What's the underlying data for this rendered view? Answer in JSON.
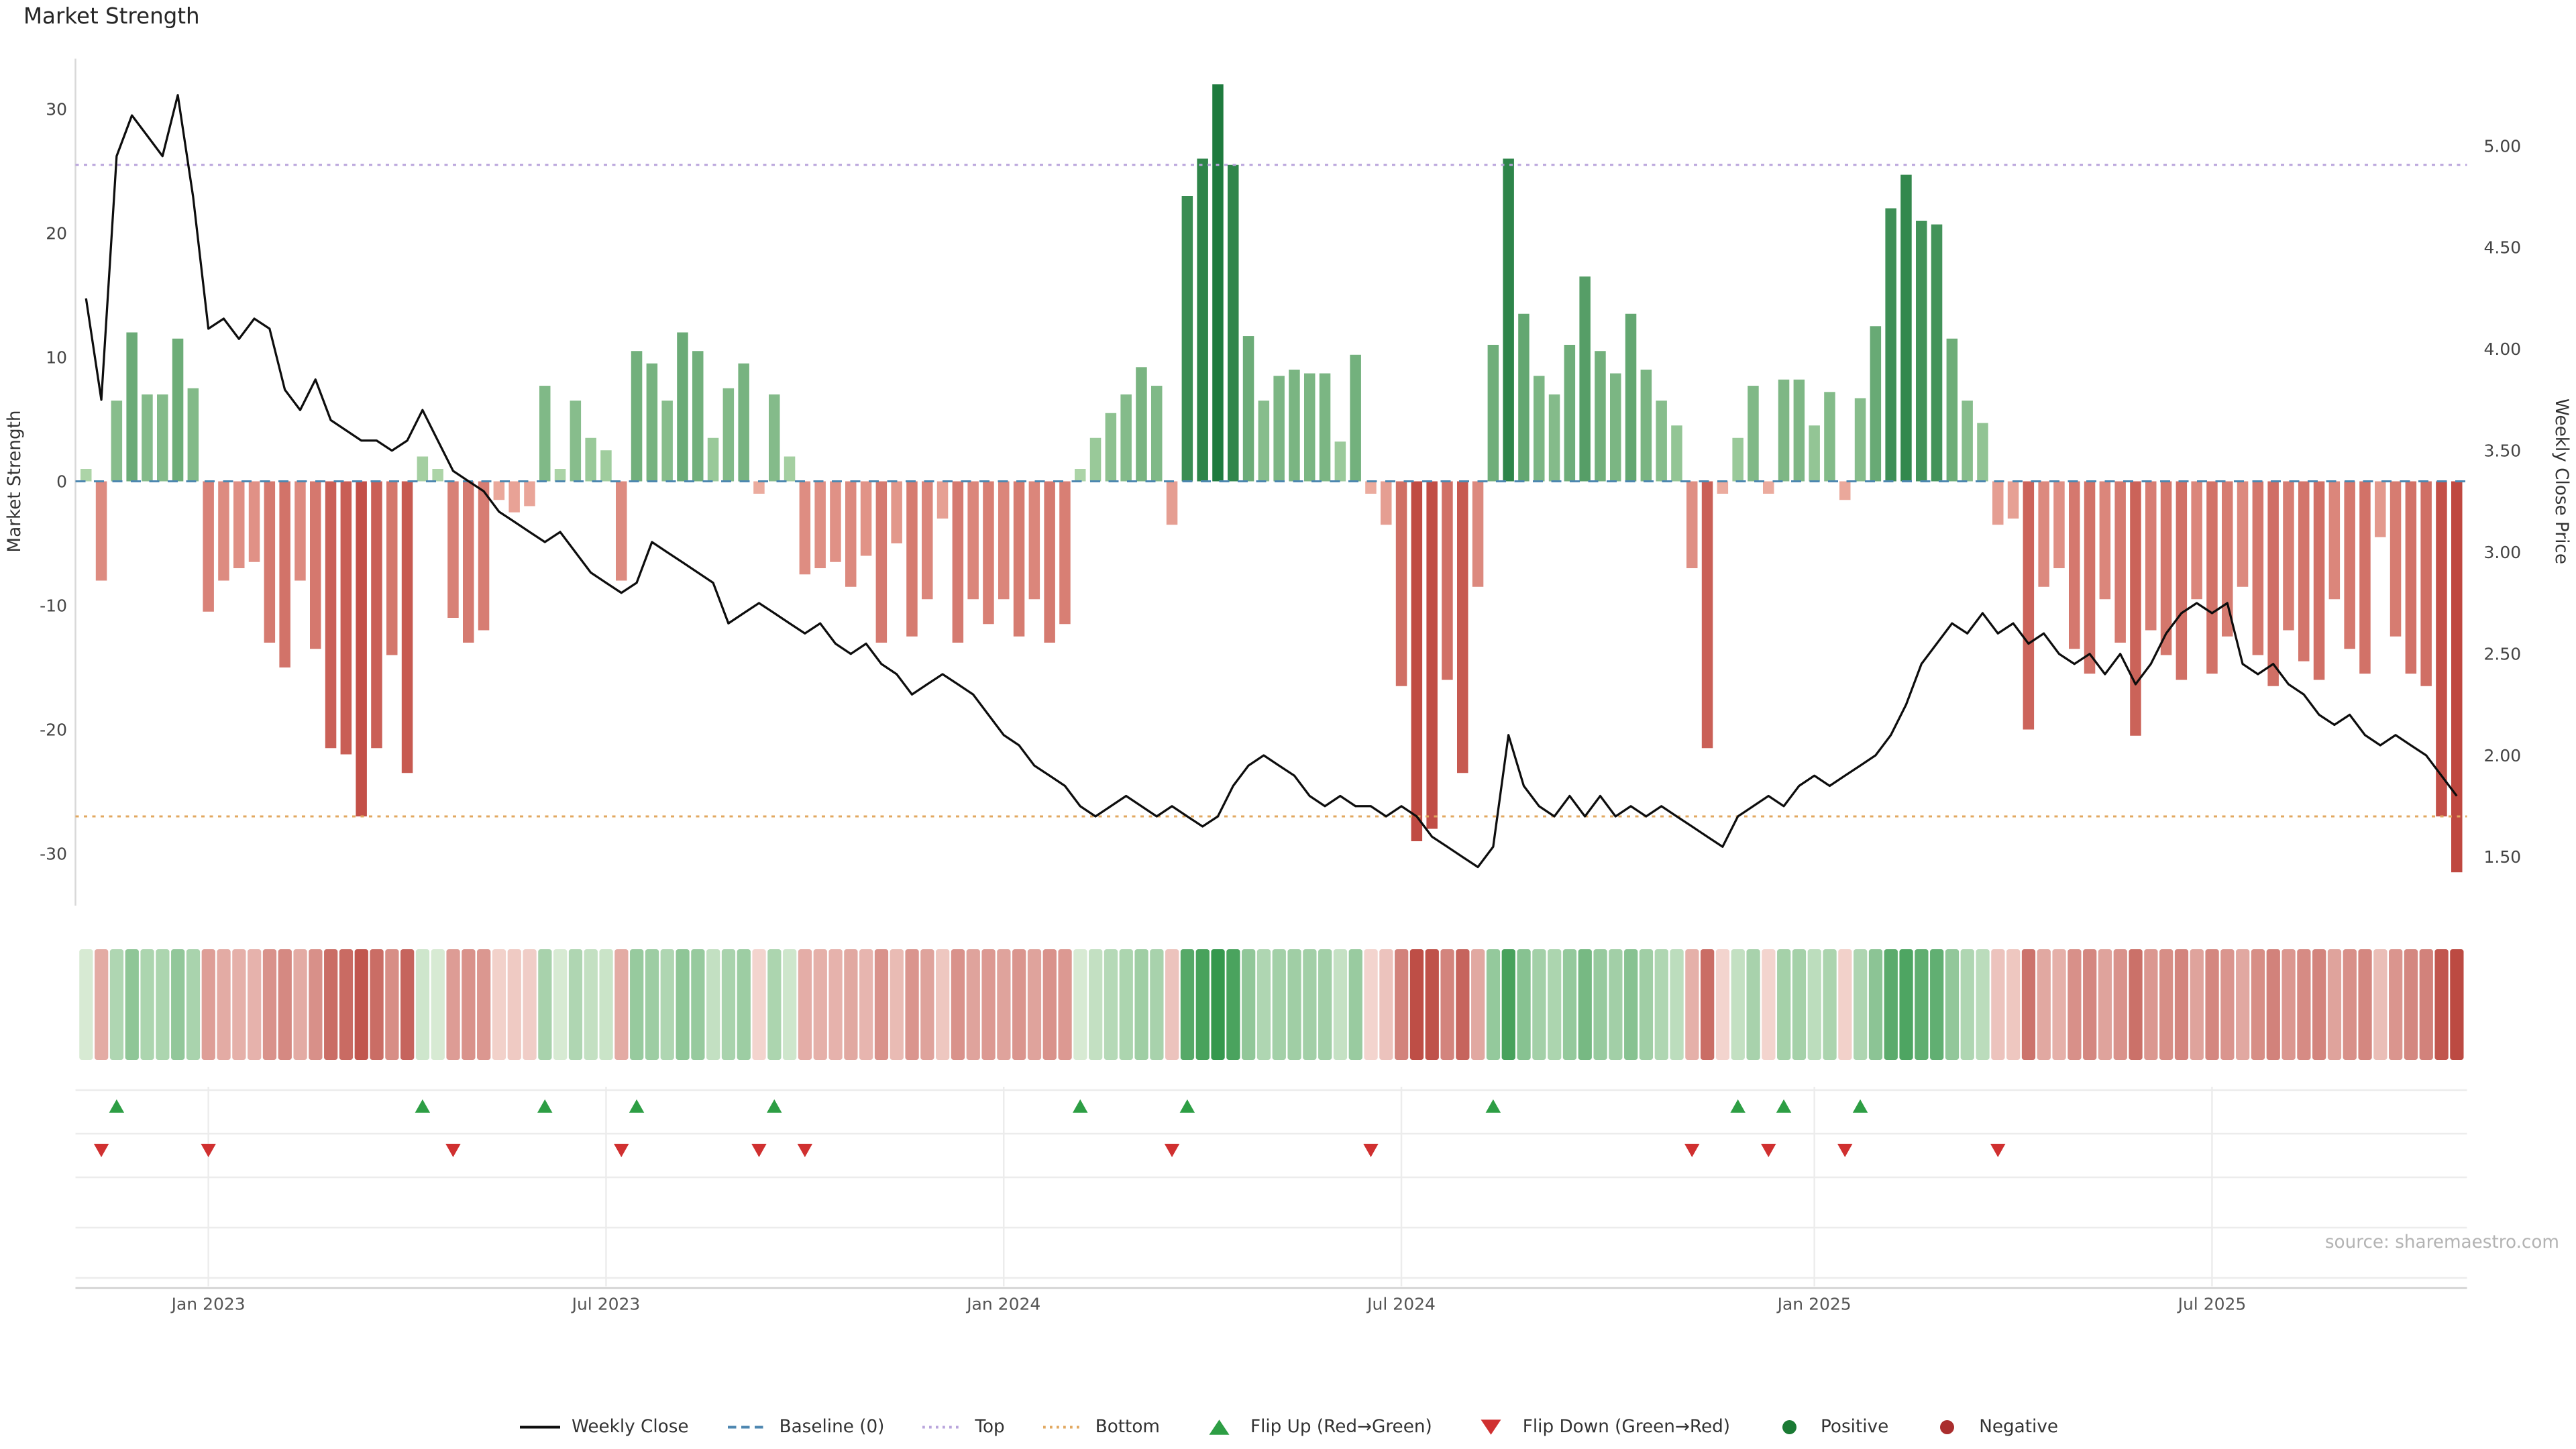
{
  "title": "Market Strength",
  "source": "source: sharemaestro.com",
  "axes": {
    "left_label": "Market Strength",
    "right_label": "Weekly Close Price",
    "left_ticks": [
      30,
      20,
      10,
      0,
      -10,
      -20,
      -30
    ],
    "right_ticks": [
      {
        "label": "5.00",
        "value": 5.0
      },
      {
        "label": "4.50",
        "value": 4.5
      },
      {
        "label": "4.00",
        "value": 4.0
      },
      {
        "label": "3.50",
        "value": 3.5
      },
      {
        "label": "3.00",
        "value": 3.0
      },
      {
        "label": "2.50",
        "value": 2.5
      },
      {
        "label": "2.00",
        "value": 2.0
      },
      {
        "label": "1.50",
        "value": 1.5
      }
    ],
    "x_ticks": [
      {
        "label": "Jan 2023",
        "week": 8
      },
      {
        "label": "Jul 2023",
        "week": 34
      },
      {
        "label": "Jan 2024",
        "week": 60
      },
      {
        "label": "Jul 2024",
        "week": 86
      },
      {
        "label": "Jan 2025",
        "week": 113
      },
      {
        "label": "Jul 2025",
        "week": 139
      }
    ]
  },
  "chart_data": {
    "type": "bar+line",
    "x_unit": "week",
    "weeks": 156,
    "strength_ylim": [
      -34,
      34
    ],
    "price_ylim": [
      1.4,
      5.45
    ],
    "baseline": 0,
    "top_threshold": 25.5,
    "bottom_threshold": -27,
    "strength_bars": [
      1,
      -8,
      6.5,
      12,
      7,
      7,
      11.5,
      7.5,
      -10.5,
      -8,
      -7,
      -6.5,
      -13,
      -15,
      -8,
      -13.5,
      -21.5,
      -22,
      -27,
      -21.5,
      -14,
      -23.5,
      2,
      1,
      -11,
      -13,
      -12,
      -1.5,
      -2.5,
      -2,
      7.7,
      1,
      6.5,
      3.5,
      2.5,
      -8,
      10.5,
      9.5,
      6.5,
      12,
      10.5,
      3.5,
      7.5,
      9.5,
      -1,
      7,
      2,
      -7.5,
      -7,
      -6.5,
      -8.5,
      -6,
      -13,
      -5,
      -12.5,
      -9.5,
      -3,
      -13,
      -9.5,
      -11.5,
      -9.5,
      -12.5,
      -9.5,
      -13,
      -11.5,
      1,
      3.5,
      5.5,
      7,
      9.2,
      7.7,
      -3.5,
      23,
      26,
      32,
      25.5,
      11.7,
      6.5,
      8.5,
      9,
      8.7,
      8.7,
      3.2,
      10.2,
      -1,
      -3.5,
      -16.5,
      -29,
      -28,
      -16,
      -23.5,
      -8.5,
      11,
      26,
      13.5,
      8.5,
      7,
      11,
      16.5,
      10.5,
      8.7,
      13.5,
      9,
      6.5,
      4.5,
      -7,
      -21.5,
      -1,
      3.5,
      7.7,
      -1,
      8.2,
      8.2,
      4.5,
      7.2,
      -1.5,
      6.7,
      12.5,
      22,
      24.7,
      21,
      20.7,
      11.5,
      6.5,
      4.7,
      -3.5,
      -3,
      -20,
      -8.5,
      -7,
      -13.5,
      -15.5,
      -9.5,
      -13,
      -20.5,
      -12,
      -14,
      -16,
      -9.5,
      -15.5,
      -12.5,
      -8.5,
      -14,
      -16.5,
      -12,
      -14.5,
      -16,
      -9.5,
      -13.5,
      -15.5,
      -4.5,
      -12.5,
      -15.5,
      -16.5,
      -27,
      -31.5
    ],
    "weekly_close": [
      4.25,
      3.75,
      4.95,
      5.15,
      5.05,
      4.95,
      5.25,
      4.75,
      4.1,
      4.15,
      4.05,
      4.15,
      4.1,
      3.8,
      3.7,
      3.85,
      3.65,
      3.6,
      3.55,
      3.55,
      3.5,
      3.55,
      3.7,
      3.55,
      3.4,
      3.35,
      3.3,
      3.2,
      3.15,
      3.1,
      3.05,
      3.1,
      3.0,
      2.9,
      2.85,
      2.8,
      2.85,
      3.05,
      3.0,
      2.95,
      2.9,
      2.85,
      2.65,
      2.7,
      2.75,
      2.7,
      2.65,
      2.6,
      2.65,
      2.55,
      2.5,
      2.55,
      2.45,
      2.4,
      2.3,
      2.35,
      2.4,
      2.35,
      2.3,
      2.2,
      2.1,
      2.05,
      1.95,
      1.9,
      1.85,
      1.75,
      1.7,
      1.75,
      1.8,
      1.75,
      1.7,
      1.75,
      1.7,
      1.65,
      1.7,
      1.85,
      1.95,
      2.0,
      1.95,
      1.9,
      1.8,
      1.75,
      1.8,
      1.75,
      1.75,
      1.7,
      1.75,
      1.7,
      1.6,
      1.55,
      1.5,
      1.45,
      1.55,
      2.1,
      1.85,
      1.75,
      1.7,
      1.8,
      1.7,
      1.8,
      1.7,
      1.75,
      1.7,
      1.75,
      1.7,
      1.65,
      1.6,
      1.55,
      1.7,
      1.75,
      1.8,
      1.75,
      1.85,
      1.9,
      1.85,
      1.9,
      1.95,
      2.0,
      2.1,
      2.25,
      2.45,
      2.55,
      2.65,
      2.6,
      2.7,
      2.6,
      2.65,
      2.55,
      2.6,
      2.5,
      2.45,
      2.5,
      2.4,
      2.5,
      2.35,
      2.45,
      2.6,
      2.7,
      2.75,
      2.7,
      2.75,
      2.45,
      2.4,
      2.45,
      2.35,
      2.3,
      2.2,
      2.15,
      2.2,
      2.1,
      2.05,
      2.1,
      2.05,
      2.0,
      1.9,
      1.8
    ],
    "flip_up_weeks": [
      2,
      22,
      30,
      36,
      45,
      65,
      72,
      92,
      108,
      111,
      116
    ],
    "flip_down_weeks": [
      1,
      8,
      24,
      35,
      44,
      47,
      71,
      84,
      105,
      110,
      115,
      125
    ]
  },
  "legend": [
    {
      "label": "Weekly Close",
      "type": "line",
      "color": "#0d0d0d"
    },
    {
      "label": "Baseline (0)",
      "type": "dashed",
      "color": "#4d87b0"
    },
    {
      "label": "Top",
      "type": "dotted",
      "color": "#b9a4dc"
    },
    {
      "label": "Bottom",
      "type": "dotted",
      "color": "#e2a860"
    },
    {
      "label": "Flip Up (Red→Green)",
      "type": "triangle-up",
      "color": "#2d9e44"
    },
    {
      "label": "Flip Down (Green→Red)",
      "type": "triangle-down",
      "color": "#d03030"
    },
    {
      "label": "Positive",
      "type": "dot",
      "color": "#1a7a34"
    },
    {
      "label": "Negative",
      "type": "dot",
      "color": "#aa2e2e"
    }
  ],
  "colors": {
    "price_line": "#0d0d0d",
    "baseline": "#4d87b0",
    "top": "#b9a4dc",
    "bottom": "#e2a860",
    "pos_light": "#b8dcb0",
    "pos_dark": "#1e7b3e",
    "neg_light": "#efb3a6",
    "neg_dark": "#bf4840",
    "heat_pos_light": "#e2f0dc",
    "heat_pos_dark": "#35984d",
    "heat_neg_light": "#f7ded8",
    "heat_neg_dark": "#bc4a42",
    "flip_up": "#2d9e44",
    "flip_down": "#d03030",
    "grid": "#ececec",
    "axis_line": "#d9d9d9",
    "tick_text": "#444444",
    "x_tick_text": "#555555"
  }
}
